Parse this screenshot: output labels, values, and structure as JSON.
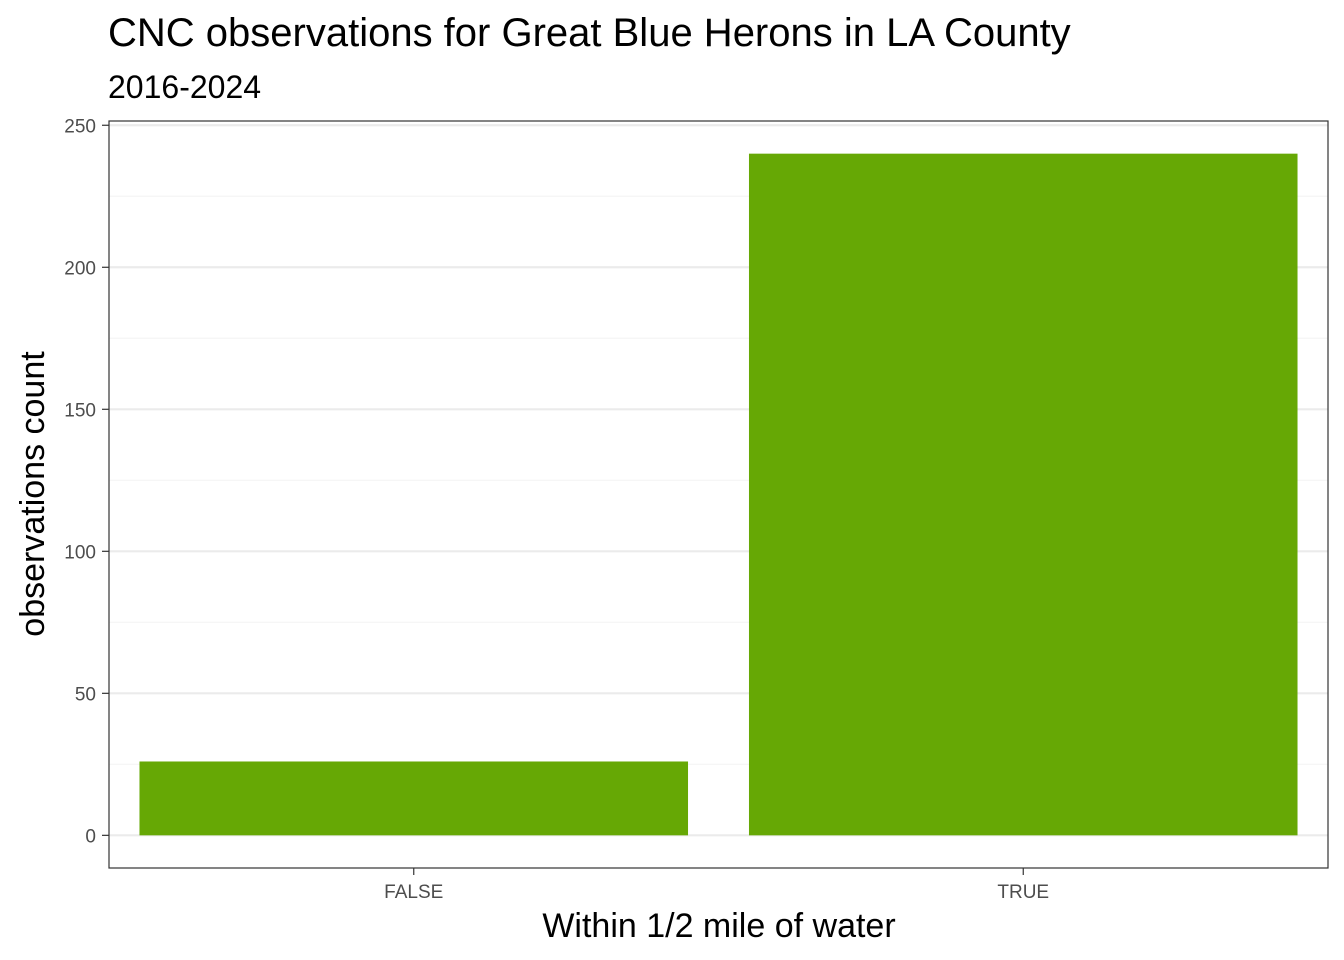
{
  "chart_data": {
    "type": "bar",
    "title": "CNC observations for Great Blue Herons in LA County",
    "subtitle": "2016-2024",
    "xlabel": "Within 1/2 mile of water",
    "ylabel": "observations count",
    "categories": [
      "FALSE",
      "TRUE"
    ],
    "values": [
      26,
      240
    ],
    "ylim": [
      -11.5,
      251.5
    ],
    "yticks": [
      0,
      50,
      100,
      150,
      200,
      250
    ],
    "grid": true,
    "bar_color": "#66a805",
    "panel_border_color": "#333333",
    "grid_major_color": "#ebebeb",
    "grid_minor_color": "#f5f5f5"
  }
}
